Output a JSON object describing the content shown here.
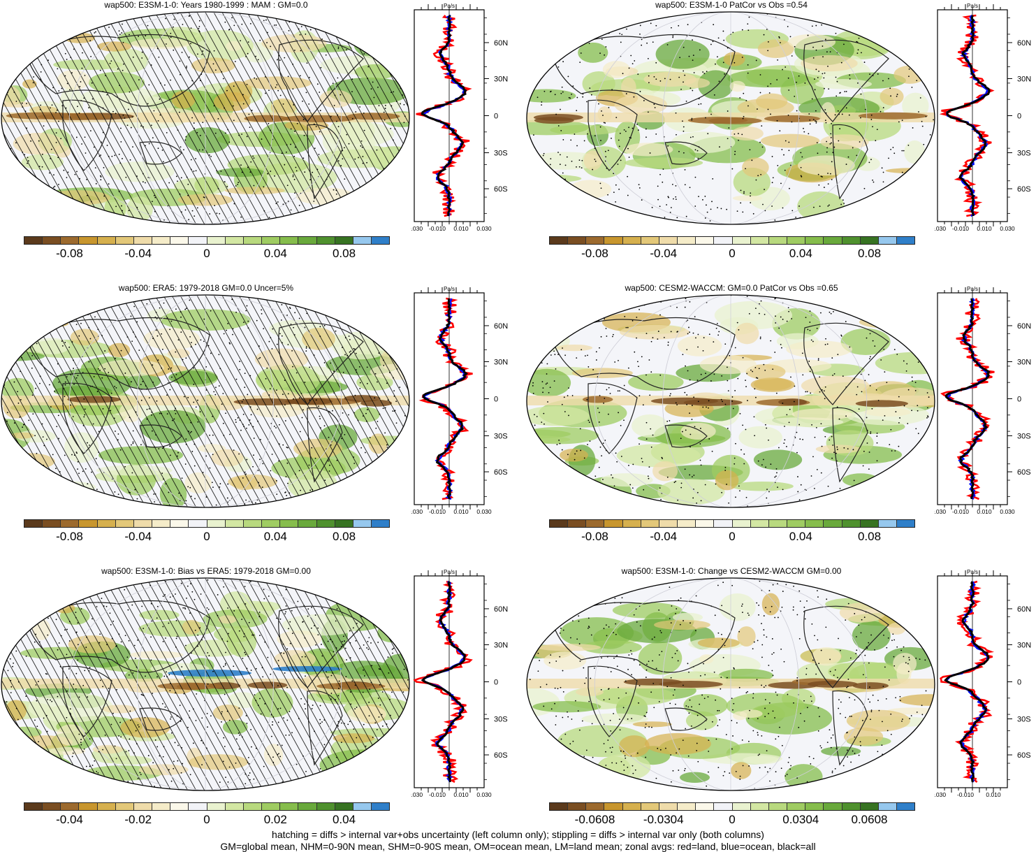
{
  "panels": [
    {
      "title": "wap500: E3SM-1-0: Years 1980-1999 : MAM : GM=0.0",
      "cbar_labels": [
        "-0.08",
        "-0.04",
        "0",
        "0.04",
        "0.08"
      ],
      "zonal_ticks_x": [
        "-0.030",
        "-0.010",
        "0.010",
        "0.030"
      ],
      "zonal_unit": "Pa/s",
      "lat_labels": [
        "60N",
        "30N",
        "0",
        "30S",
        "60S"
      ],
      "hatched": true
    },
    {
      "title": "wap500: E3SM-1-0 PatCor vs Obs =0.54",
      "cbar_labels": [
        "-0.08",
        "-0.04",
        "0",
        "0.04",
        "0.08"
      ],
      "zonal_ticks_x": [
        "-0.030",
        "-0.010",
        "0.010",
        "0.030"
      ],
      "zonal_unit": "Pa/s",
      "lat_labels": [
        "60N",
        "30N",
        "0",
        "30S",
        "60S"
      ],
      "hatched": false
    },
    {
      "title": "wap500: ERA5: 1979-2018 GM=0.0 Uncer=5%",
      "cbar_labels": [
        "-0.08",
        "-0.04",
        "0",
        "0.04",
        "0.08"
      ],
      "zonal_ticks_x": [
        "-0.030",
        "-0.010",
        "0.010",
        "0.030"
      ],
      "zonal_unit": "Pa/s",
      "lat_labels": [
        "60N",
        "30N",
        "0",
        "30S",
        "60S"
      ],
      "hatched": true
    },
    {
      "title": "wap500: CESM2-WACCM: GM=0.0 PatCor vs Obs =0.65",
      "cbar_labels": [
        "-0.08",
        "-0.04",
        "0",
        "0.04",
        "0.08"
      ],
      "zonal_ticks_x": [
        "-0.030",
        "-0.010",
        "0.010",
        "0.030"
      ],
      "zonal_unit": "Pa/s",
      "lat_labels": [
        "60N",
        "30N",
        "0",
        "30S",
        "60S"
      ],
      "hatched": false
    },
    {
      "title": "wap500: E3SM-1-0: Bias vs ERA5: 1979-2018 GM=0.00",
      "cbar_labels": [
        "-0.04",
        "-0.02",
        "0",
        "0.02",
        "0.04"
      ],
      "zonal_ticks_x": [
        "-0.030",
        "-0.010",
        "0.010",
        "0.030"
      ],
      "zonal_unit": "Pa/s",
      "lat_labels": [
        "60N",
        "30N",
        "0",
        "30S",
        "60S"
      ],
      "hatched": true
    },
    {
      "title": "wap500: E3SM-1-0: Change vs CESM2-WACCM GM=0.00",
      "cbar_labels": [
        "-0.0608",
        "-0.0304",
        "0",
        "0.0304",
        "0.0608"
      ],
      "zonal_ticks_x": [
        "-0.030",
        "-0.010",
        "0.010"
      ],
      "zonal_unit": "Pa/s",
      "lat_labels": [
        "60N",
        "30N",
        "0",
        "30S",
        "60S"
      ],
      "hatched": false
    }
  ],
  "colors": {
    "palette": [
      "#5b3a1c",
      "#7a4e22",
      "#9c6a2e",
      "#c8962e",
      "#d6b04e",
      "#e3c879",
      "#efdcaa",
      "#f5ecc9",
      "#fbf8ea",
      "#f2f3f7",
      "#e9f2cf",
      "#d3e7a3",
      "#b8d97e",
      "#9fcc62",
      "#86bd4c",
      "#69a93c",
      "#4f912e",
      "#377322",
      "#96c8ee",
      "#2f7fc9"
    ],
    "land_line": "#222222",
    "red": "#ff0000",
    "blue": "#0010ff",
    "black": "#000000"
  },
  "footer": {
    "line1": "hatching = diffs > internal var+obs uncertainty (left column only); stippling = diffs > internal var only (both columns)",
    "line2": "GM=global mean, NHM=0-90N mean, SHM=0-90S mean, OM=ocean mean, LM=land mean; zonal avgs: red=land, blue=ocean, black=all"
  }
}
